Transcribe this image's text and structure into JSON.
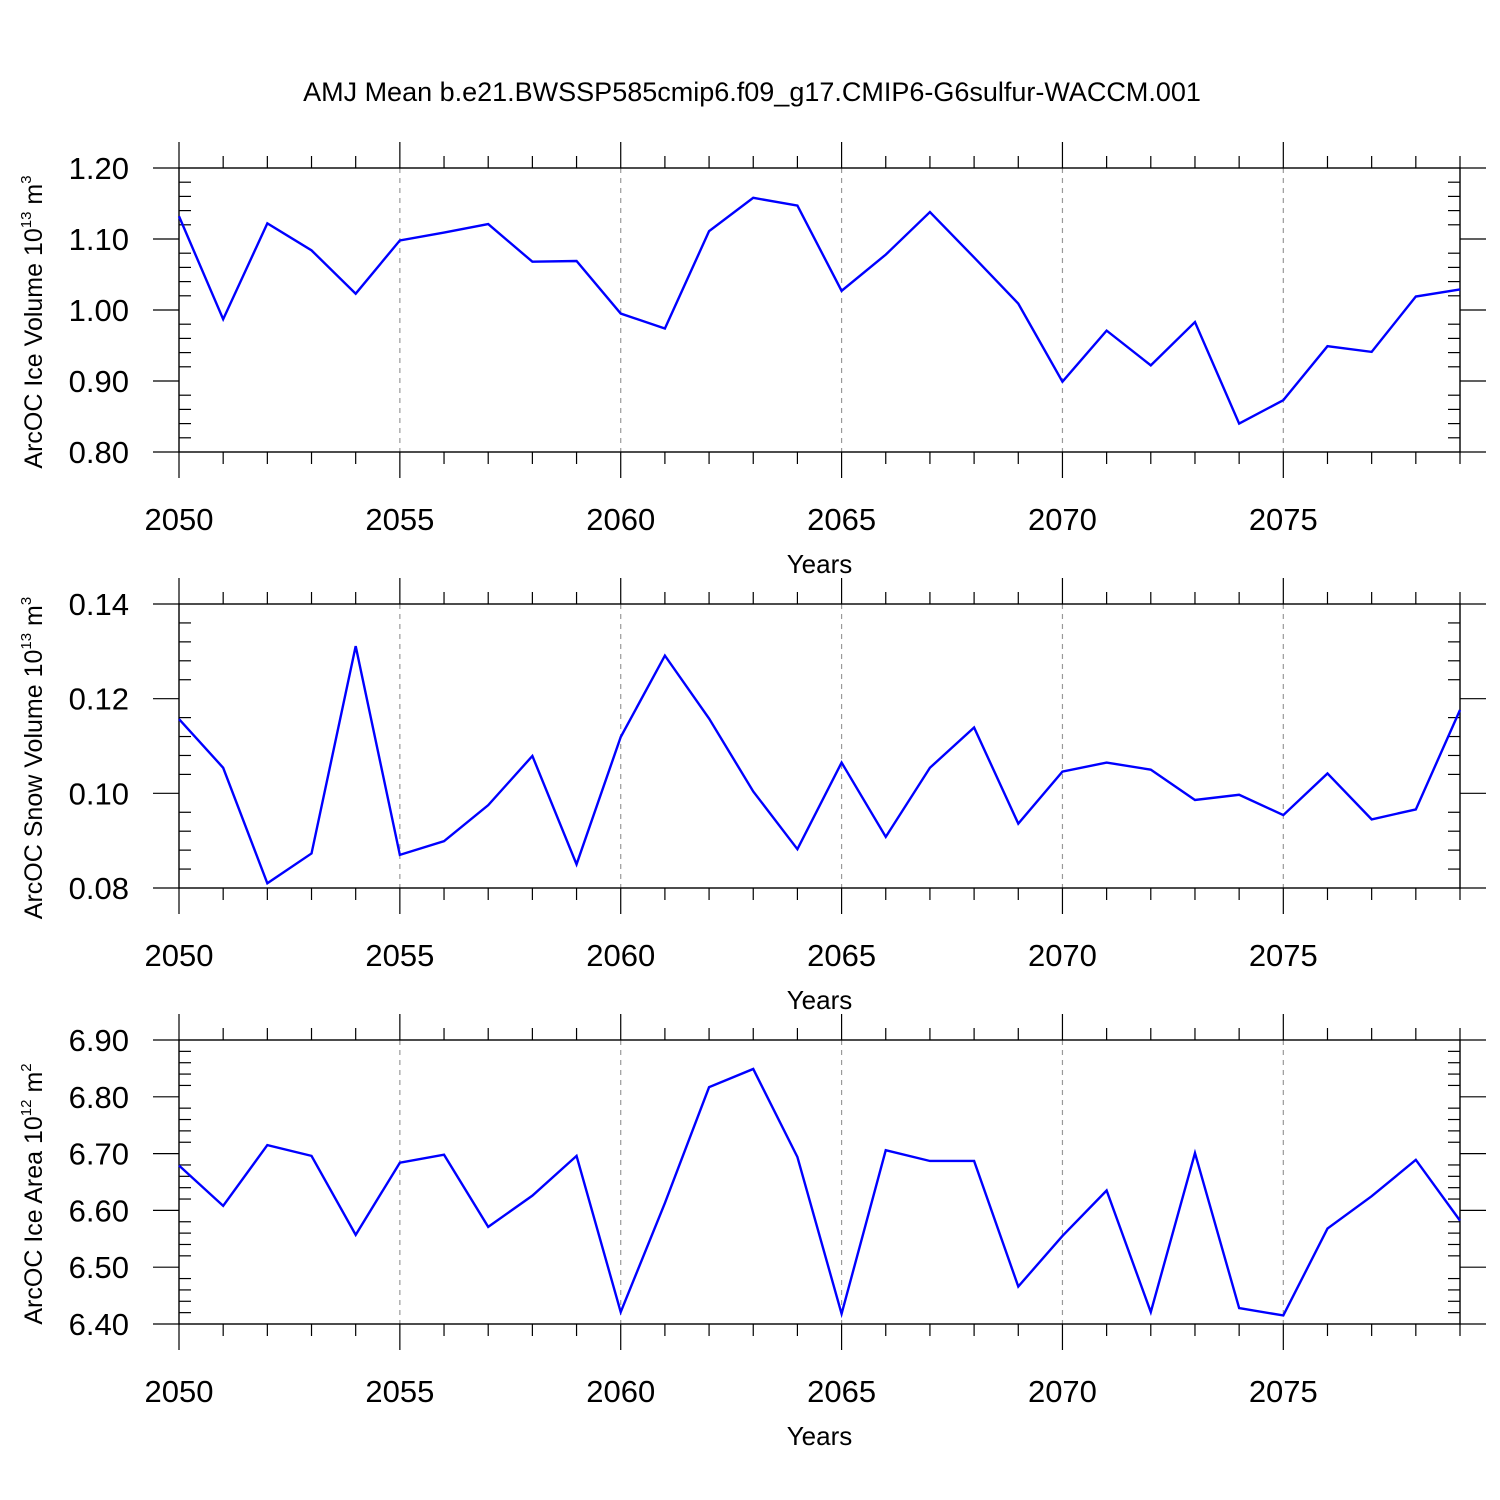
{
  "figure": {
    "title": "AMJ Mean b.e21.BWSSP585cmip6.f09_g17.CMIP6-G6sulfur-WACCM.001"
  },
  "colors": {
    "line": "#0000ff",
    "axis": "#000000",
    "grid": "#999999",
    "background": "#ffffff"
  },
  "chart_data": [
    {
      "type": "line",
      "title": "",
      "xlabel": "Years",
      "ylabel_parts": {
        "prefix": "ArcOC Ice Volume 10",
        "exponent": "13",
        "unit": " m",
        "unit_exponent": "3"
      },
      "xlim": [
        2050,
        2079
      ],
      "ylim": [
        0.8,
        1.2
      ],
      "xticks": [
        2050,
        2055,
        2060,
        2065,
        2070,
        2075
      ],
      "xtick_labels": [
        "2050",
        "2055",
        "2060",
        "2065",
        "2070",
        "2075"
      ],
      "yticks": [
        0.8,
        0.9,
        1.0,
        1.1,
        1.2
      ],
      "ytick_labels": [
        "0.80",
        "0.90",
        "1.00",
        "1.10",
        "1.20"
      ],
      "grid": "vertical dashed at major x ticks",
      "series": [
        {
          "name": "ArcOC Ice Volume",
          "x": [
            2050,
            2051,
            2052,
            2053,
            2054,
            2055,
            2056,
            2057,
            2058,
            2059,
            2060,
            2061,
            2062,
            2063,
            2064,
            2065,
            2066,
            2067,
            2068,
            2069,
            2070,
            2071,
            2072,
            2073,
            2074,
            2075,
            2076,
            2077,
            2078,
            2079
          ],
          "values": [
            1.132,
            0.987,
            1.122,
            1.084,
            1.023,
            1.098,
            1.109,
            1.121,
            1.068,
            1.069,
            0.995,
            0.974,
            1.111,
            1.158,
            1.147,
            1.027,
            1.078,
            1.138,
            1.074,
            1.009,
            0.899,
            0.971,
            0.922,
            0.983,
            0.84,
            0.873,
            0.949,
            0.941,
            1.019,
            1.029
          ]
        }
      ]
    },
    {
      "type": "line",
      "title": "",
      "xlabel": "Years",
      "ylabel_parts": {
        "prefix": "ArcOC Snow Volume 10",
        "exponent": "13",
        "unit": " m",
        "unit_exponent": "3"
      },
      "xlim": [
        2050,
        2079
      ],
      "ylim": [
        0.08,
        0.14
      ],
      "xticks": [
        2050,
        2055,
        2060,
        2065,
        2070,
        2075
      ],
      "xtick_labels": [
        "2050",
        "2055",
        "2060",
        "2065",
        "2070",
        "2075"
      ],
      "yticks": [
        0.08,
        0.1,
        0.12,
        0.14
      ],
      "ytick_labels": [
        "0.08",
        "0.10",
        "0.12",
        "0.14"
      ],
      "grid": "vertical dashed at major x ticks",
      "series": [
        {
          "name": "ArcOC Snow Volume",
          "x": [
            2050,
            2051,
            2052,
            2053,
            2054,
            2055,
            2056,
            2057,
            2058,
            2059,
            2060,
            2061,
            2062,
            2063,
            2064,
            2065,
            2066,
            2067,
            2068,
            2069,
            2070,
            2071,
            2072,
            2073,
            2074,
            2075,
            2076,
            2077,
            2078,
            2079
          ],
          "values": [
            0.1157,
            0.1054,
            0.081,
            0.0873,
            0.1311,
            0.087,
            0.0899,
            0.0975,
            0.1079,
            0.085,
            0.1119,
            0.1291,
            0.1158,
            0.1004,
            0.0882,
            0.1065,
            0.0908,
            0.1054,
            0.1139,
            0.0936,
            0.1046,
            0.1065,
            0.105,
            0.0986,
            0.0997,
            0.0954,
            0.1042,
            0.0945,
            0.0966,
            0.1176
          ]
        }
      ]
    },
    {
      "type": "line",
      "title": "",
      "xlabel": "Years",
      "ylabel_parts": {
        "prefix": "ArcOC Ice Area 10",
        "exponent": "12",
        "unit": " m",
        "unit_exponent": "2"
      },
      "xlim": [
        2050,
        2079
      ],
      "ylim": [
        6.4,
        6.9
      ],
      "xticks": [
        2050,
        2055,
        2060,
        2065,
        2070,
        2075
      ],
      "xtick_labels": [
        "2050",
        "2055",
        "2060",
        "2065",
        "2070",
        "2075"
      ],
      "yticks": [
        6.4,
        6.5,
        6.6,
        6.7,
        6.8,
        6.9
      ],
      "ytick_labels": [
        "6.40",
        "6.50",
        "6.60",
        "6.70",
        "6.80",
        "6.90"
      ],
      "grid": "vertical dashed at major x ticks",
      "series": [
        {
          "name": "ArcOC Ice Area",
          "x": [
            2050,
            2051,
            2052,
            2053,
            2054,
            2055,
            2056,
            2057,
            2058,
            2059,
            2060,
            2061,
            2062,
            2063,
            2064,
            2065,
            2066,
            2067,
            2068,
            2069,
            2070,
            2071,
            2072,
            2073,
            2074,
            2075,
            2076,
            2077,
            2078,
            2079
          ],
          "values": [
            6.679,
            6.608,
            6.715,
            6.696,
            6.557,
            6.684,
            6.698,
            6.571,
            6.626,
            6.696,
            6.421,
            6.613,
            6.817,
            6.849,
            6.694,
            6.418,
            6.706,
            6.687,
            6.687,
            6.466,
            6.555,
            6.635,
            6.421,
            6.701,
            6.428,
            6.415,
            6.568,
            6.625,
            6.689,
            6.582
          ]
        }
      ]
    }
  ]
}
